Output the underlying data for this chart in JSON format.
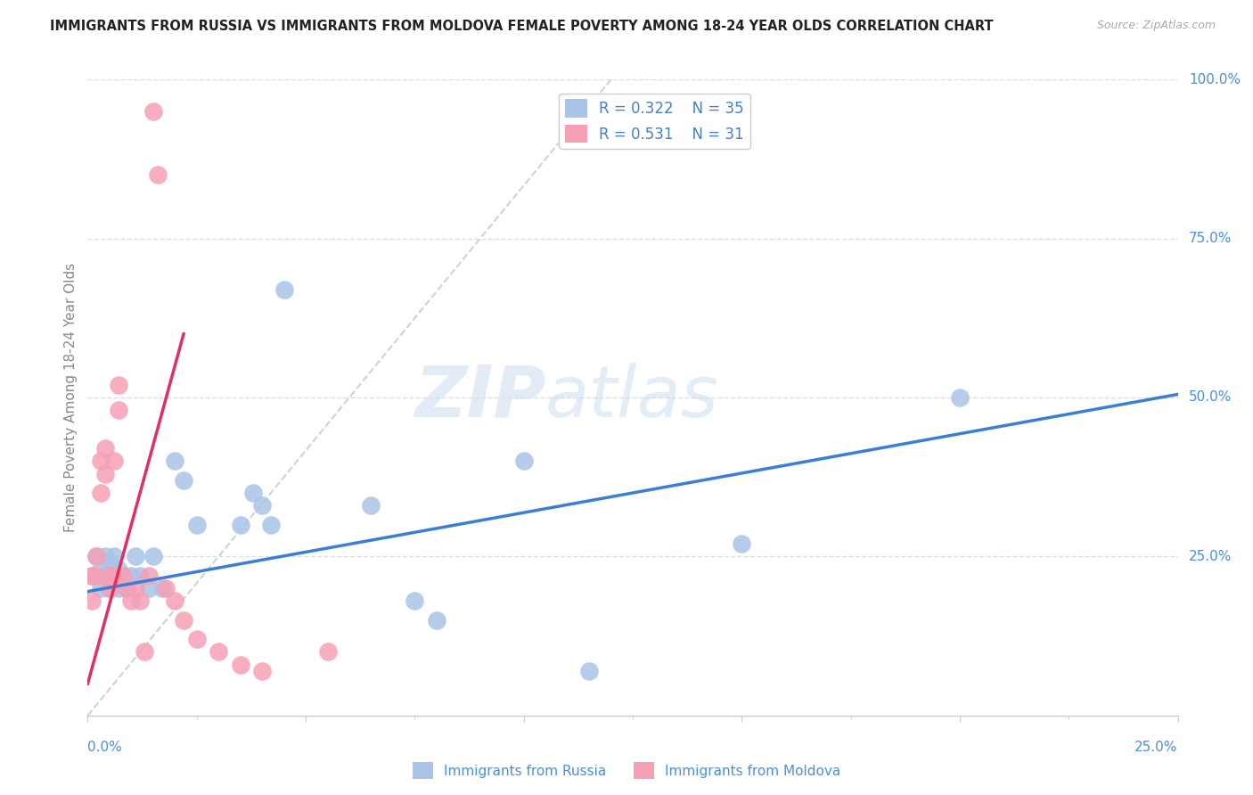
{
  "title": "IMMIGRANTS FROM RUSSIA VS IMMIGRANTS FROM MOLDOVA FEMALE POVERTY AMONG 18-24 YEAR OLDS CORRELATION CHART",
  "source": "Source: ZipAtlas.com",
  "ylabel": "Female Poverty Among 18-24 Year Olds",
  "xlim": [
    0.0,
    0.25
  ],
  "ylim": [
    0.0,
    1.0
  ],
  "russia_color": "#aac4e8",
  "moldova_color": "#f5a0b5",
  "russia_line_color": "#3a7fd5",
  "moldova_line_color": "#e03060",
  "ref_line_color": "#cccccc",
  "r_russia": 0.322,
  "n_russia": 35,
  "r_moldova": 0.531,
  "n_moldova": 31,
  "russia_x": [
    0.001,
    0.002,
    0.003,
    0.003,
    0.004,
    0.004,
    0.005,
    0.005,
    0.006,
    0.006,
    0.007,
    0.007,
    0.008,
    0.009,
    0.01,
    0.011,
    0.012,
    0.014,
    0.015,
    0.017,
    0.02,
    0.022,
    0.025,
    0.035,
    0.038,
    0.04,
    0.042,
    0.045,
    0.065,
    0.075,
    0.08,
    0.1,
    0.115,
    0.15,
    0.2
  ],
  "russia_y": [
    0.22,
    0.25,
    0.2,
    0.23,
    0.22,
    0.25,
    0.2,
    0.24,
    0.22,
    0.25,
    0.2,
    0.23,
    0.22,
    0.2,
    0.22,
    0.25,
    0.22,
    0.2,
    0.25,
    0.2,
    0.4,
    0.37,
    0.3,
    0.3,
    0.35,
    0.33,
    0.3,
    0.67,
    0.33,
    0.18,
    0.15,
    0.4,
    0.07,
    0.27,
    0.5
  ],
  "moldova_x": [
    0.001,
    0.001,
    0.002,
    0.002,
    0.003,
    0.003,
    0.004,
    0.004,
    0.005,
    0.005,
    0.006,
    0.006,
    0.007,
    0.007,
    0.008,
    0.009,
    0.01,
    0.011,
    0.012,
    0.013,
    0.014,
    0.015,
    0.016,
    0.018,
    0.02,
    0.022,
    0.025,
    0.03,
    0.035,
    0.04,
    0.055
  ],
  "moldova_y": [
    0.22,
    0.18,
    0.22,
    0.25,
    0.4,
    0.35,
    0.38,
    0.42,
    0.22,
    0.2,
    0.22,
    0.4,
    0.52,
    0.48,
    0.22,
    0.2,
    0.18,
    0.2,
    0.18,
    0.1,
    0.22,
    0.95,
    0.85,
    0.2,
    0.18,
    0.15,
    0.12,
    0.1,
    0.08,
    0.07,
    0.1
  ],
  "watermark_zip": "ZIP",
  "watermark_atlas": "atlas",
  "legend_label_color": "#4a7fc0",
  "background_color": "#ffffff",
  "grid_color": "#dddddd",
  "axis_label_color": "#888888",
  "right_tick_color": "#4a90d9",
  "bottom_label_color": "#4a90d9"
}
